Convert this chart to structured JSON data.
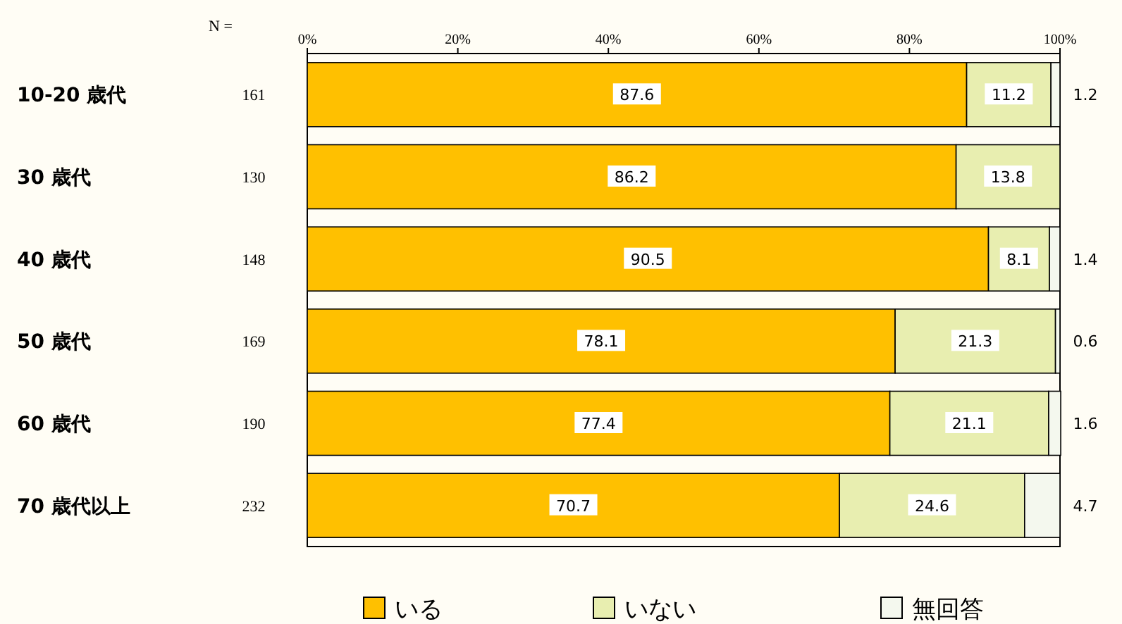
{
  "chart_data": {
    "type": "bar",
    "orientation": "horizontal",
    "stacked": true,
    "legend": "bottom",
    "x2lim": [
      0,
      100
    ],
    "x2ticks": [
      {
        "value": 0,
        "label": "0%"
      },
      {
        "value": 20,
        "label": "20%"
      },
      {
        "value": 40,
        "label": "40%"
      },
      {
        "value": 60,
        "label": "60%"
      },
      {
        "value": 80,
        "label": "80%"
      },
      {
        "value": 100,
        "label": "100%"
      }
    ],
    "categories": [
      "10-20 歳代",
      "30 歳代",
      "40 歳代",
      "50 歳代",
      "60 歳代",
      "70 歳代以上"
    ],
    "series": [
      {
        "name": "いる",
        "color": "#ffc000",
        "values": [
          87.6,
          86.2,
          90.5,
          78.1,
          77.4,
          70.7
        ],
        "value_labels": [
          "87.6",
          "86.2",
          "90.5",
          "78.1",
          "77.4",
          "70.7"
        ]
      },
      {
        "name": "いない",
        "color": "#e8eeb0",
        "values": [
          11.2,
          13.8,
          8.1,
          21.3,
          21.1,
          24.6
        ],
        "value_labels": [
          "11.2",
          "13.8",
          "8.1",
          "21.3",
          "21.1",
          "24.6"
        ]
      },
      {
        "name": "無回答",
        "color": "#f4f8ee",
        "values": [
          1.2,
          0,
          1.4,
          0.6,
          1.6,
          4.7
        ],
        "value_labels": [
          "1.2",
          null,
          "1.4",
          "0.6",
          "1.6",
          "4.7"
        ]
      }
    ],
    "annotations": [
      "N =",
      "161",
      "130",
      "148",
      "169",
      "190",
      "232"
    ]
  }
}
